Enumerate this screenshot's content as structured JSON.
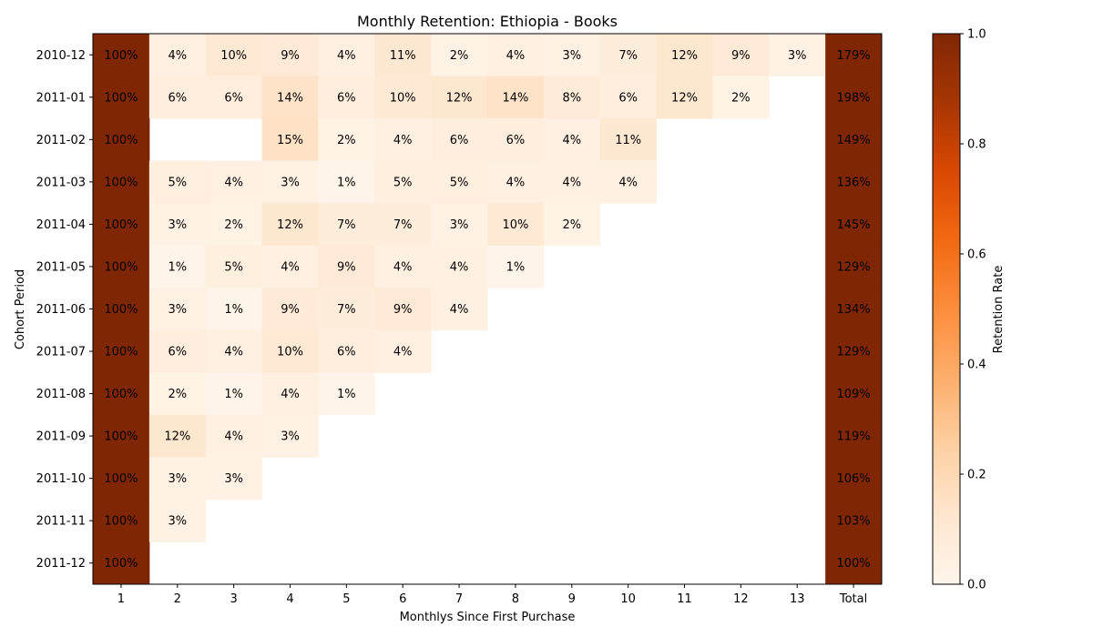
{
  "chart_data": {
    "type": "heatmap",
    "title": "Monthly Retention: Ethiopia - Books",
    "xlabel": "Monthlys Since First Purchase",
    "ylabel": "Cohort Period",
    "x_categories": [
      "1",
      "2",
      "3",
      "4",
      "5",
      "6",
      "7",
      "8",
      "9",
      "10",
      "11",
      "12",
      "13",
      "Total"
    ],
    "y_categories": [
      "2010-12",
      "2011-01",
      "2011-02",
      "2011-03",
      "2011-04",
      "2011-05",
      "2011-06",
      "2011-07",
      "2011-08",
      "2011-09",
      "2011-10",
      "2011-11",
      "2011-12"
    ],
    "values": [
      [
        1.0,
        0.04,
        0.1,
        0.09,
        0.04,
        0.11,
        0.02,
        0.04,
        0.03,
        0.07,
        0.12,
        0.09,
        0.03,
        1.79
      ],
      [
        1.0,
        0.06,
        0.06,
        0.14,
        0.06,
        0.1,
        0.12,
        0.14,
        0.08,
        0.06,
        0.12,
        0.02,
        null,
        1.98
      ],
      [
        1.0,
        null,
        null,
        0.15,
        0.02,
        0.04,
        0.06,
        0.06,
        0.04,
        0.11,
        null,
        null,
        null,
        1.49
      ],
      [
        1.0,
        0.05,
        0.04,
        0.03,
        0.01,
        0.05,
        0.05,
        0.04,
        0.04,
        0.04,
        null,
        null,
        null,
        1.36
      ],
      [
        1.0,
        0.03,
        0.02,
        0.12,
        0.07,
        0.07,
        0.03,
        0.1,
        0.02,
        null,
        null,
        null,
        null,
        1.45
      ],
      [
        1.0,
        0.01,
        0.05,
        0.04,
        0.09,
        0.04,
        0.04,
        0.01,
        null,
        null,
        null,
        null,
        null,
        1.29
      ],
      [
        1.0,
        0.03,
        0.01,
        0.09,
        0.07,
        0.09,
        0.04,
        null,
        null,
        null,
        null,
        null,
        null,
        1.34
      ],
      [
        1.0,
        0.06,
        0.04,
        0.1,
        0.06,
        0.04,
        null,
        null,
        null,
        null,
        null,
        null,
        null,
        1.29
      ],
      [
        1.0,
        0.02,
        0.01,
        0.04,
        0.01,
        null,
        null,
        null,
        null,
        null,
        null,
        null,
        null,
        1.09
      ],
      [
        1.0,
        0.12,
        0.04,
        0.03,
        null,
        null,
        null,
        null,
        null,
        null,
        null,
        null,
        null,
        1.19
      ],
      [
        1.0,
        0.03,
        0.03,
        null,
        null,
        null,
        null,
        null,
        null,
        null,
        null,
        null,
        null,
        1.06
      ],
      [
        1.0,
        0.03,
        null,
        null,
        null,
        null,
        null,
        null,
        null,
        null,
        null,
        null,
        null,
        1.03
      ],
      [
        1.0,
        null,
        null,
        null,
        null,
        null,
        null,
        null,
        null,
        null,
        null,
        null,
        null,
        1.0
      ]
    ],
    "labels": [
      [
        "100%",
        "4%",
        "10%",
        "9%",
        "4%",
        "11%",
        "2%",
        "4%",
        "3%",
        "7%",
        "12%",
        "9%",
        "3%",
        "179%"
      ],
      [
        "100%",
        "6%",
        "6%",
        "14%",
        "6%",
        "10%",
        "12%",
        "14%",
        "8%",
        "6%",
        "12%",
        "2%",
        "",
        "198%"
      ],
      [
        "100%",
        "",
        "",
        "15%",
        "2%",
        "4%",
        "6%",
        "6%",
        "4%",
        "11%",
        "",
        "",
        "",
        "149%"
      ],
      [
        "100%",
        "5%",
        "4%",
        "3%",
        "1%",
        "5%",
        "5%",
        "4%",
        "4%",
        "4%",
        "",
        "",
        "",
        "136%"
      ],
      [
        "100%",
        "3%",
        "2%",
        "12%",
        "7%",
        "7%",
        "3%",
        "10%",
        "2%",
        "",
        "",
        "",
        "",
        "145%"
      ],
      [
        "100%",
        "1%",
        "5%",
        "4%",
        "9%",
        "4%",
        "4%",
        "1%",
        "",
        "",
        "",
        "",
        "",
        "129%"
      ],
      [
        "100%",
        "3%",
        "1%",
        "9%",
        "7%",
        "9%",
        "4%",
        "",
        "",
        "",
        "",
        "",
        "",
        "134%"
      ],
      [
        "100%",
        "6%",
        "4%",
        "10%",
        "6%",
        "4%",
        "",
        "",
        "",
        "",
        "",
        "",
        "",
        "129%"
      ],
      [
        "100%",
        "2%",
        "1%",
        "4%",
        "1%",
        "",
        "",
        "",
        "",
        "",
        "",
        "",
        "",
        "109%"
      ],
      [
        "100%",
        "12%",
        "4%",
        "3%",
        "",
        "",
        "",
        "",
        "",
        "",
        "",
        "",
        "",
        "119%"
      ],
      [
        "100%",
        "3%",
        "3%",
        "",
        "",
        "",
        "",
        "",
        "",
        "",
        "",
        "",
        "",
        "106%"
      ],
      [
        "100%",
        "3%",
        "",
        "",
        "",
        "",
        "",
        "",
        "",
        "",
        "",
        "",
        "",
        "103%"
      ],
      [
        "100%",
        "",
        "",
        "",
        "",
        "",
        "",
        "",
        "",
        "",
        "",
        "",
        "",
        "100%"
      ]
    ],
    "colorbar": {
      "label": "Retention Rate",
      "range": [
        0.0,
        1.0
      ],
      "ticks": [
        0.0,
        0.2,
        0.4,
        0.6,
        0.8,
        1.0
      ],
      "tick_labels": [
        "0.0",
        "0.2",
        "0.4",
        "0.6",
        "0.8",
        "1.0"
      ],
      "colormap": "Oranges"
    },
    "grid": false
  }
}
